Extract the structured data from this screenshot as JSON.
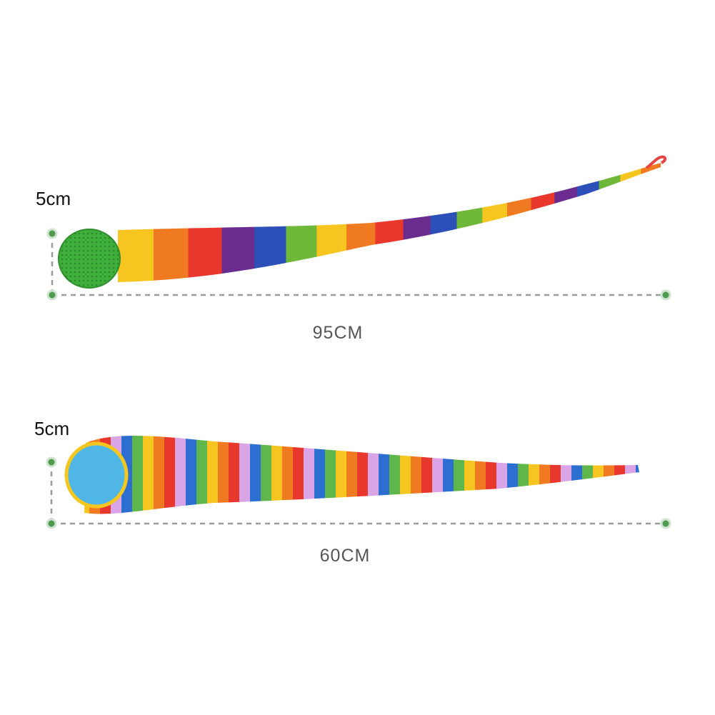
{
  "items": [
    {
      "height_label": "5cm",
      "length_label": "95CM"
    },
    {
      "height_label": "5cm",
      "length_label": "60CM"
    }
  ]
}
